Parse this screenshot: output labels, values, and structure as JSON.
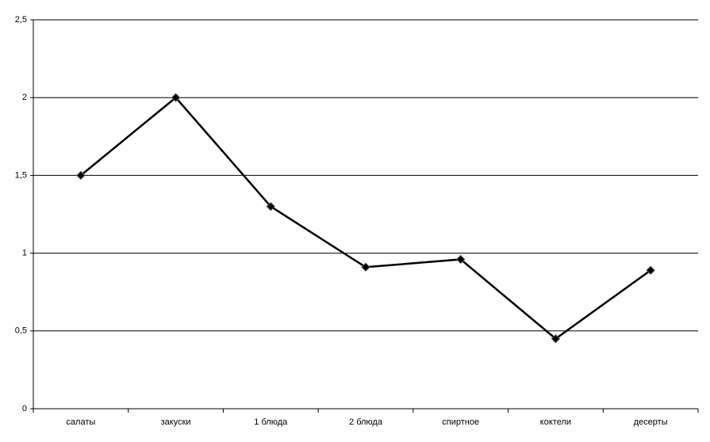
{
  "chart_data": {
    "type": "line",
    "categories": [
      "салаты",
      "закуски",
      "1 блюда",
      "2 блюда",
      "спиртное",
      "коктели",
      "десерты"
    ],
    "series": [
      {
        "color": "#000000",
        "values": [
          1.5,
          2.0,
          1.3,
          0.91,
          0.96,
          0.45,
          0.89
        ]
      }
    ],
    "ylim": [
      0,
      2.5
    ],
    "yticks": [
      0,
      {
        "value": 0.5,
        "label": "0,5"
      },
      1,
      {
        "value": 1.5,
        "label": "1,5"
      },
      2,
      {
        "value": 2.5,
        "label": "2,5"
      }
    ],
    "grid": true
  }
}
